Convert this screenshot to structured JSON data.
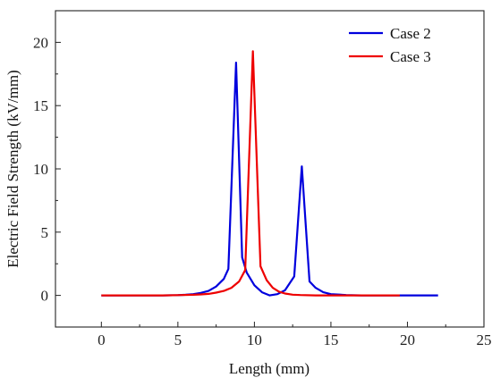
{
  "chart_data": {
    "type": "line",
    "title": "",
    "xlabel": "Length (mm)",
    "ylabel": "Electric Field Strength (kV/mm)",
    "xlim": [
      -3,
      25
    ],
    "ylim": [
      -2.5,
      22.5
    ],
    "x_ticks": [
      "0",
      "5",
      "10",
      "15",
      "20",
      "25"
    ],
    "y_ticks": [
      "0",
      "5",
      "10",
      "15",
      "20"
    ],
    "grid": false,
    "legend_position": "top-right",
    "series": [
      {
        "name": "Case 2",
        "color": "#0000dd",
        "points": [
          [
            0,
            0
          ],
          [
            2,
            0
          ],
          [
            4,
            0
          ],
          [
            5,
            0.02
          ],
          [
            5.5,
            0.05
          ],
          [
            6,
            0.1
          ],
          [
            6.5,
            0.2
          ],
          [
            7,
            0.35
          ],
          [
            7.5,
            0.7
          ],
          [
            8,
            1.3
          ],
          [
            8.3,
            2.1
          ],
          [
            8.8,
            18.4
          ],
          [
            9.2,
            3.0
          ],
          [
            9.5,
            1.8
          ],
          [
            10,
            0.8
          ],
          [
            10.5,
            0.25
          ],
          [
            11,
            0
          ],
          [
            11.5,
            0.1
          ],
          [
            12,
            0.4
          ],
          [
            12.6,
            1.5
          ],
          [
            13.1,
            10.2
          ],
          [
            13.6,
            1.1
          ],
          [
            14,
            0.6
          ],
          [
            14.5,
            0.25
          ],
          [
            15,
            0.1
          ],
          [
            16,
            0.03
          ],
          [
            17,
            0
          ],
          [
            18,
            0
          ],
          [
            20,
            0
          ],
          [
            22,
            0
          ]
        ]
      },
      {
        "name": "Case 3",
        "color": "#ee0000",
        "points": [
          [
            0,
            0
          ],
          [
            2,
            0
          ],
          [
            4,
            0
          ],
          [
            5,
            0.02
          ],
          [
            6,
            0.05
          ],
          [
            6.5,
            0.08
          ],
          [
            7,
            0.12
          ],
          [
            7.5,
            0.22
          ],
          [
            8,
            0.35
          ],
          [
            8.5,
            0.6
          ],
          [
            9,
            1.1
          ],
          [
            9.4,
            2.0
          ],
          [
            9.9,
            19.3
          ],
          [
            10.4,
            2.3
          ],
          [
            10.8,
            1.2
          ],
          [
            11.2,
            0.6
          ],
          [
            11.6,
            0.3
          ],
          [
            12,
            0.15
          ],
          [
            12.5,
            0.06
          ],
          [
            13,
            0.03
          ],
          [
            14,
            0
          ],
          [
            16,
            0
          ],
          [
            18,
            0
          ],
          [
            19.5,
            0
          ]
        ]
      }
    ]
  }
}
